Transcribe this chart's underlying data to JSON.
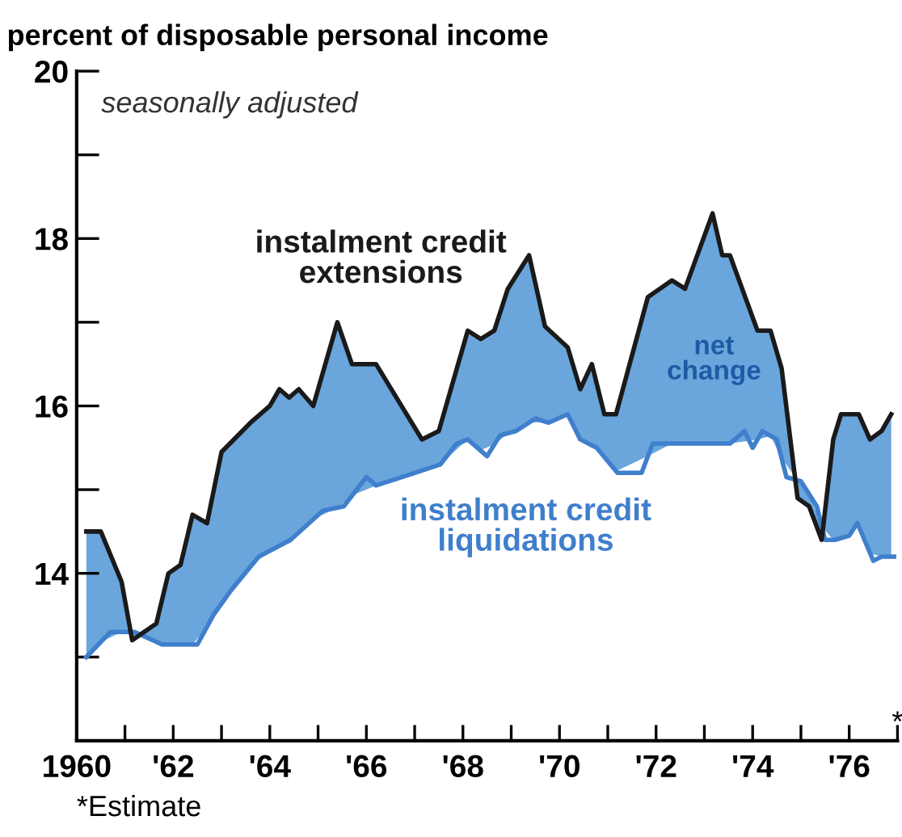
{
  "chart_data": {
    "type": "line",
    "ylabel": "percent of disposable personal income",
    "annotations": [
      "seasonally adjusted",
      "net change",
      "*",
      "*Estimate"
    ],
    "series": [
      {
        "name": "instalment credit extensions",
        "color": "#1a1a1a",
        "upper": [
          14.5,
          14.5,
          13.9,
          13.2,
          13.4,
          14.0,
          14.1,
          14.7,
          14.6,
          15.45,
          15.8,
          16.0,
          16.2,
          16.1,
          16.2,
          16.0,
          17.0,
          16.5,
          16.5,
          15.6,
          15.7,
          16.9,
          16.8,
          16.9,
          17.4,
          17.8,
          16.95,
          16.7,
          16.2,
          16.5,
          15.9,
          15.9,
          17.3,
          17.5,
          17.4,
          18.3,
          17.8,
          17.8,
          16.9,
          16.9,
          16.45,
          14.9,
          14.8,
          14.4,
          15.6,
          15.9,
          15.9,
          15.6,
          15.7,
          15.9
        ],
        "lower": [
          13.0,
          13.18,
          13.3,
          13.3,
          13.18,
          13.15,
          13.15,
          13.15,
          13.36,
          13.63,
          14.08,
          14.27,
          14.33,
          14.39,
          14.49,
          14.65,
          14.78,
          14.93,
          15.05,
          15.23,
          15.29,
          15.6,
          15.47,
          15.54,
          15.67,
          15.8,
          15.81,
          15.9,
          15.6,
          15.53,
          15.39,
          15.22,
          15.4,
          15.55,
          15.55,
          15.55,
          15.55,
          15.55,
          15.6,
          15.64,
          15.38,
          15.11,
          14.95,
          14.56,
          14.4,
          14.42,
          14.57,
          14.24,
          14.2,
          14.2
        ],
        "x": [
          1960.2,
          1960.5,
          1960.93,
          1961.15,
          1961.65,
          1961.9,
          1962.15,
          1962.4,
          1962.7,
          1963.0,
          1963.6,
          1964.0,
          1964.2,
          1964.4,
          1964.6,
          1964.9,
          1965.4,
          1965.7,
          1966.2,
          1967.15,
          1967.5,
          1968.1,
          1968.37,
          1968.65,
          1968.93,
          1969.37,
          1969.7,
          1970.17,
          1970.43,
          1970.67,
          1970.93,
          1971.17,
          1971.83,
          1972.33,
          1972.6,
          1973.17,
          1973.37,
          1973.53,
          1974.1,
          1974.37,
          1974.6,
          1974.93,
          1975.17,
          1975.43,
          1975.67,
          1975.83,
          1976.2,
          1976.43,
          1976.67,
          1976.87
        ],
        "values": [
          14.5,
          14.5,
          13.9,
          13.2,
          13.4,
          14.0,
          14.1,
          14.7,
          14.6,
          15.45,
          15.8,
          16.0,
          16.2,
          16.1,
          16.2,
          16.0,
          17.0,
          16.5,
          16.5,
          15.6,
          15.7,
          16.9,
          16.8,
          16.9,
          17.4,
          17.8,
          16.95,
          16.7,
          16.2,
          16.5,
          15.9,
          15.9,
          17.3,
          17.5,
          17.4,
          18.3,
          17.8,
          17.8,
          16.9,
          16.9,
          16.45,
          14.9,
          14.8,
          14.4,
          15.6,
          15.9,
          15.9,
          15.6,
          15.7,
          15.9
        ]
      },
      {
        "name": "instalment credit liquidations",
        "color": "#3f7fcc",
        "x": [
          1960.2,
          1960.7,
          1961.2,
          1961.77,
          1962.5,
          1962.83,
          1963.2,
          1963.77,
          1964.43,
          1965.1,
          1965.53,
          1966.0,
          1966.2,
          1967.0,
          1967.53,
          1967.87,
          1968.1,
          1968.5,
          1968.77,
          1969.1,
          1969.5,
          1969.77,
          1970.17,
          1970.43,
          1970.77,
          1971.2,
          1971.7,
          1971.93,
          1973.53,
          1973.83,
          1974.0,
          1974.2,
          1974.5,
          1974.7,
          1975.0,
          1975.33,
          1975.5,
          1975.7,
          1976.0,
          1976.17,
          1976.5,
          1976.67,
          1976.93
        ],
        "values": [
          13.0,
          13.3,
          13.3,
          13.15,
          13.15,
          13.5,
          13.8,
          14.2,
          14.4,
          14.75,
          14.8,
          15.15,
          15.05,
          15.2,
          15.3,
          15.55,
          15.6,
          15.4,
          15.65,
          15.7,
          15.85,
          15.8,
          15.9,
          15.6,
          15.5,
          15.2,
          15.2,
          15.55,
          15.55,
          15.7,
          15.5,
          15.7,
          15.6,
          15.15,
          15.1,
          14.8,
          14.4,
          14.4,
          14.45,
          14.6,
          14.15,
          14.2,
          14.2
        ]
      }
    ],
    "xlim": [
      1960,
      1977
    ],
    "xticks": [
      1960,
      {
        "value": 1961,
        "label": null
      },
      {
        "value": 1962,
        "label": "'62"
      },
      {
        "value": 1963,
        "label": null
      },
      {
        "value": 1964,
        "label": "'64"
      },
      {
        "value": 1965,
        "label": null
      },
      {
        "value": 1966,
        "label": "'66"
      },
      {
        "value": 1967,
        "label": null
      },
      {
        "value": 1968,
        "label": "'68"
      },
      {
        "value": 1969,
        "label": null
      },
      {
        "value": 1970,
        "label": "'70"
      },
      {
        "value": 1971,
        "label": null
      },
      {
        "value": 1972,
        "label": "'72"
      },
      {
        "value": 1973,
        "label": null
      },
      {
        "value": 1974,
        "label": "'74"
      },
      {
        "value": 1975,
        "label": null
      },
      {
        "value": 1976,
        "label": "'76"
      },
      {
        "value": 1977,
        "label": null
      }
    ],
    "ylim": [
      12,
      20
    ],
    "yticks": [
      {
        "value": 13,
        "label": null
      },
      14,
      {
        "value": 15,
        "label": null
      },
      16,
      {
        "value": 17,
        "label": null
      },
      18,
      {
        "value": 19,
        "label": null
      },
      20
    ],
    "grid": false,
    "legend": false,
    "marker": "none",
    "line_style": "solid"
  }
}
